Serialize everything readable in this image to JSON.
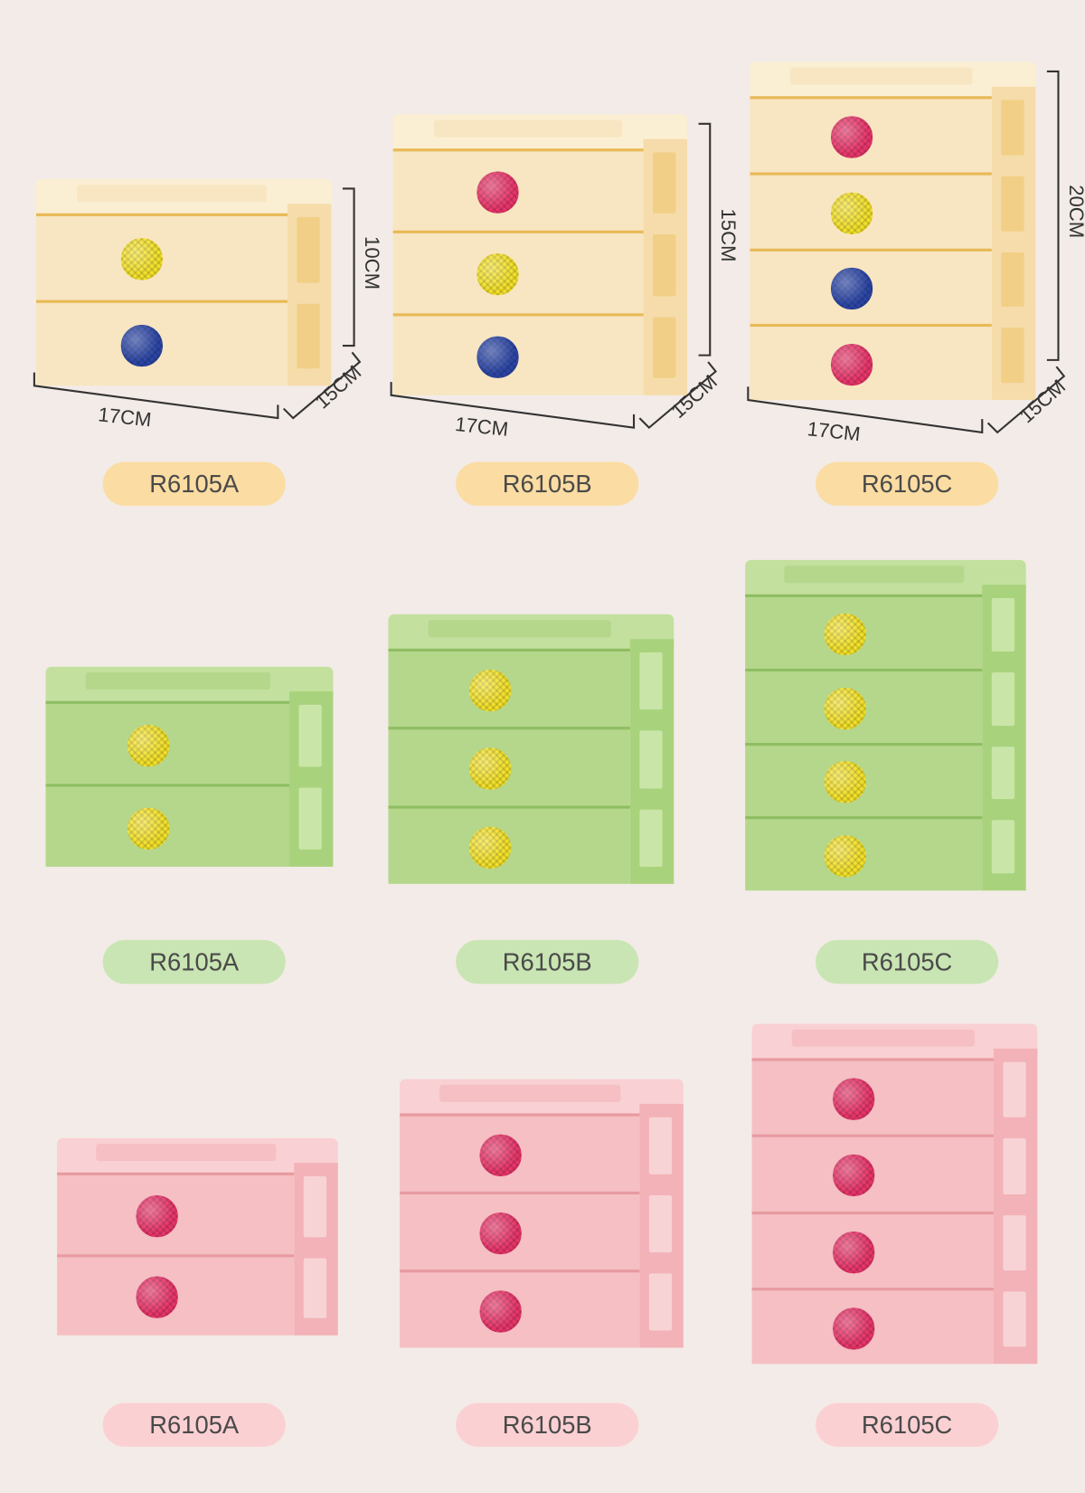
{
  "dimensions": {
    "width": "17CM",
    "depth": "15CM",
    "heights": {
      "R6105A": "10CM",
      "R6105B": "15CM",
      "R6105C": "20CM"
    }
  },
  "knob_colors": {
    "yellow": "#f2e02a",
    "blue": "#2b45a6",
    "red": "#e8356a"
  },
  "rows": [
    {
      "color": "cream",
      "theme": {
        "front": "#f8e6c2",
        "lid": "#fbefd3",
        "side": "#f5dcaa",
        "window": "#f1cf86",
        "seam": "#e8b955",
        "pill": "#fbdca2"
      },
      "units": [
        {
          "model": "R6105A",
          "knobs": [
            "yellow",
            "blue"
          ]
        },
        {
          "model": "R6105B",
          "knobs": [
            "red",
            "yellow",
            "blue"
          ]
        },
        {
          "model": "R6105C",
          "knobs": [
            "red",
            "yellow",
            "blue",
            "red"
          ]
        }
      ]
    },
    {
      "color": "green",
      "theme": {
        "front": "#b4d78c",
        "lid": "#c3e09e",
        "side": "#a9d27c",
        "window": "#c9e6a8",
        "seam": "#8fbd63",
        "pill": "#c9e5b3"
      },
      "units": [
        {
          "model": "R6105A",
          "knobs": [
            "yellow",
            "yellow"
          ]
        },
        {
          "model": "R6105B",
          "knobs": [
            "yellow",
            "yellow",
            "yellow"
          ]
        },
        {
          "model": "R6105C",
          "knobs": [
            "yellow",
            "yellow",
            "yellow",
            "yellow"
          ]
        }
      ]
    },
    {
      "color": "pink",
      "theme": {
        "front": "#f5bfc3",
        "lid": "#f9d0d3",
        "side": "#f2b2b7",
        "window": "#f8d3d6",
        "seam": "#e79aa1",
        "pill": "#fbd0d3"
      },
      "units": [
        {
          "model": "R6105A",
          "knobs": [
            "red",
            "red"
          ]
        },
        {
          "model": "R6105B",
          "knobs": [
            "red",
            "red",
            "red"
          ]
        },
        {
          "model": "R6105C",
          "knobs": [
            "red",
            "red",
            "red",
            "red"
          ]
        }
      ]
    }
  ]
}
